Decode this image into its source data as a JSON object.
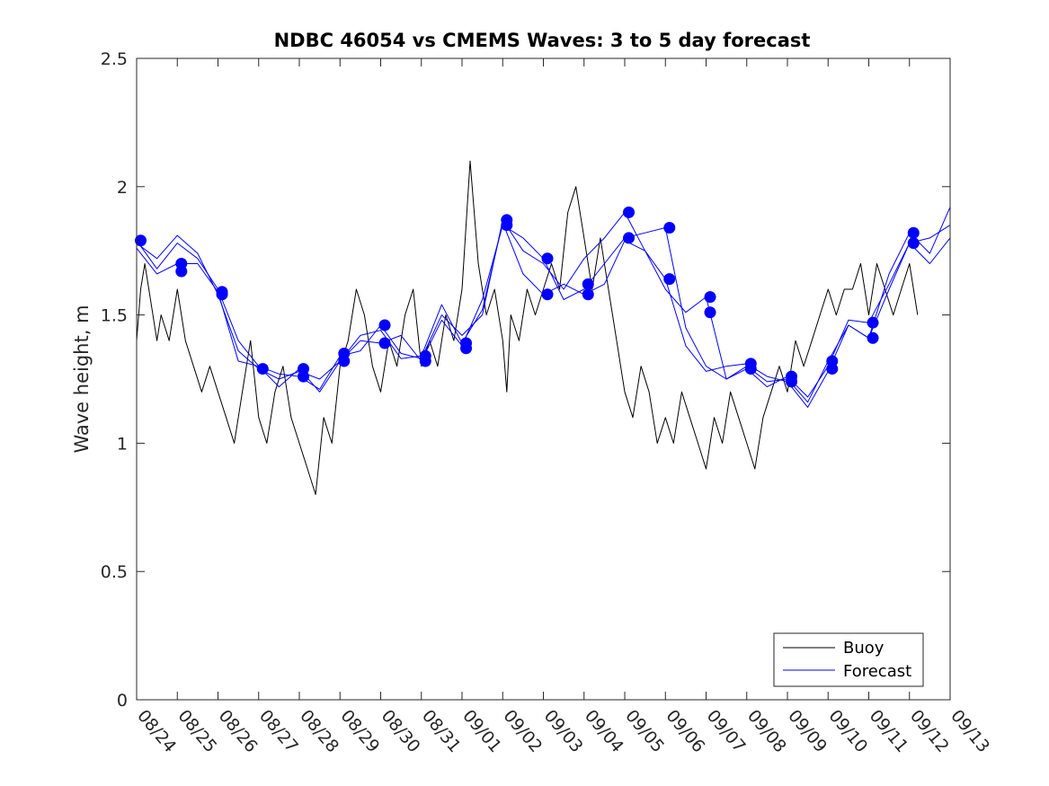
{
  "chart_data": {
    "type": "line",
    "title": "NDBC 46054 vs CMEMS Waves: 3 to 5 day forecast",
    "xlabel": "",
    "ylabel": "Wave height, m",
    "xlim": [
      0,
      20
    ],
    "ylim": [
      0,
      2.5
    ],
    "yticks": [
      0,
      0.5,
      1,
      1.5,
      2,
      2.5
    ],
    "ytick_labels": [
      "0",
      "0.5",
      "1",
      "1.5",
      "2",
      "2.5"
    ],
    "xtick_labels": [
      "08/24",
      "08/25",
      "08/26",
      "08/27",
      "08/28",
      "08/29",
      "08/30",
      "08/31",
      "09/01",
      "09/02",
      "09/03",
      "09/04",
      "09/05",
      "09/06",
      "09/07",
      "09/08",
      "09/09",
      "09/10",
      "09/11",
      "09/12",
      "09/13"
    ],
    "legend": {
      "location": "bottom-right",
      "entries": [
        "Buoy",
        "Forecast"
      ]
    },
    "colors": {
      "buoy": "#000000",
      "forecast": "#0000ff",
      "axis": "#262626"
    },
    "series": [
      {
        "name": "Buoy",
        "x": [
          0,
          0.1,
          0.2,
          0.3,
          0.4,
          0.5,
          0.6,
          0.8,
          1.0,
          1.2,
          1.4,
          1.6,
          1.8,
          2.0,
          2.2,
          2.4,
          2.6,
          2.8,
          3.0,
          3.2,
          3.4,
          3.6,
          3.8,
          4.0,
          4.2,
          4.4,
          4.6,
          4.8,
          5.0,
          5.2,
          5.4,
          5.6,
          5.8,
          6.0,
          6.2,
          6.4,
          6.6,
          6.8,
          7.0,
          7.2,
          7.4,
          7.6,
          7.8,
          8.0,
          8.2,
          8.4,
          8.6,
          8.8,
          9.0,
          9.1,
          9.2,
          9.4,
          9.6,
          9.8,
          10.0,
          10.2,
          10.4,
          10.6,
          10.8,
          11.0,
          11.2,
          11.4,
          11.6,
          11.8,
          12.0,
          12.2,
          12.4,
          12.6,
          12.8,
          13.0,
          13.2,
          13.4,
          13.6,
          13.8,
          14.0,
          14.2,
          14.4,
          14.6,
          14.8,
          15.0,
          15.2,
          15.4,
          15.6,
          15.8,
          16.0,
          16.2,
          16.4,
          16.6,
          16.8,
          17.0,
          17.2,
          17.4,
          17.6,
          17.8,
          18.0,
          18.2,
          18.4,
          18.6,
          18.8,
          19.0,
          19.2
        ],
        "y": [
          1.4,
          1.6,
          1.7,
          1.6,
          1.5,
          1.4,
          1.5,
          1.4,
          1.6,
          1.4,
          1.3,
          1.2,
          1.3,
          1.2,
          1.1,
          1.0,
          1.2,
          1.4,
          1.1,
          1.0,
          1.2,
          1.3,
          1.1,
          1.0,
          0.9,
          0.8,
          1.1,
          1.0,
          1.3,
          1.4,
          1.6,
          1.5,
          1.3,
          1.2,
          1.4,
          1.3,
          1.5,
          1.6,
          1.3,
          1.4,
          1.3,
          1.5,
          1.4,
          1.6,
          2.1,
          1.7,
          1.5,
          1.6,
          1.4,
          1.2,
          1.5,
          1.4,
          1.6,
          1.5,
          1.6,
          1.7,
          1.6,
          1.9,
          2.0,
          1.8,
          1.6,
          1.8,
          1.6,
          1.4,
          1.2,
          1.1,
          1.3,
          1.2,
          1.0,
          1.1,
          1.0,
          1.2,
          1.1,
          1.0,
          0.9,
          1.1,
          1.0,
          1.2,
          1.1,
          1.0,
          0.9,
          1.1,
          1.2,
          1.3,
          1.2,
          1.4,
          1.3,
          1.4,
          1.5,
          1.6,
          1.5,
          1.6,
          1.6,
          1.7,
          1.5,
          1.7,
          1.6,
          1.5,
          1.6,
          1.7,
          1.5
        ]
      },
      {
        "name": "Forecast 1",
        "x": [
          0,
          0.5,
          1.0,
          1.5,
          2.0,
          2.5,
          3.0,
          3.5,
          4.0,
          4.5,
          5.0,
          5.5,
          6.0,
          6.5,
          7.0,
          7.5,
          8.0,
          8.5,
          9.0,
          9.5,
          10.0,
          10.5,
          11.0,
          11.5,
          12.0,
          12.5,
          13.0,
          13.5,
          14.0,
          14.5,
          15.0,
          15.5,
          16.0,
          16.5,
          17.0,
          17.5,
          18.0,
          18.5,
          19.0,
          19.5,
          20.0
        ],
        "y": [
          1.79,
          1.68,
          1.78,
          1.72,
          1.6,
          1.4,
          1.3,
          1.27,
          1.26,
          1.21,
          1.34,
          1.36,
          1.46,
          1.35,
          1.33,
          1.5,
          1.42,
          1.5,
          1.87,
          1.75,
          1.7,
          1.6,
          1.72,
          1.8,
          1.9,
          1.75,
          1.64,
          1.38,
          1.28,
          1.3,
          1.31,
          1.26,
          1.24,
          1.14,
          1.28,
          1.46,
          1.41,
          1.66,
          1.82,
          1.74,
          1.92
        ]
      },
      {
        "name": "Forecast 2",
        "x": [
          0,
          0.5,
          1.0,
          1.5,
          2.0,
          2.5,
          3.0,
          3.5,
          4.0,
          4.5,
          5.0,
          5.5,
          6.0,
          6.5,
          7.0,
          7.5,
          8.0,
          8.5,
          9.0,
          9.5,
          10.0,
          10.5,
          11.0,
          11.5,
          12.0,
          12.5,
          13.0,
          13.5,
          14.0,
          14.5,
          15.0,
          15.5,
          16.0,
          16.5,
          17.0,
          17.5,
          18.0,
          18.5,
          19.0,
          19.5,
          20.0
        ],
        "y": [
          1.78,
          1.72,
          1.81,
          1.74,
          1.58,
          1.36,
          1.29,
          1.25,
          1.28,
          1.25,
          1.32,
          1.4,
          1.39,
          1.42,
          1.32,
          1.48,
          1.38,
          1.56,
          1.85,
          1.8,
          1.72,
          1.56,
          1.6,
          1.7,
          1.8,
          1.82,
          1.84,
          1.45,
          1.3,
          1.25,
          1.29,
          1.22,
          1.26,
          1.18,
          1.3,
          1.48,
          1.47,
          1.62,
          1.78,
          1.8,
          1.85
        ]
      },
      {
        "name": "Forecast 3",
        "x": [
          0,
          0.5,
          1.0,
          1.5,
          2.0,
          2.5,
          3.0,
          3.5,
          4.0,
          4.5,
          5.0,
          5.5,
          6.0,
          6.5,
          7.0,
          7.5,
          8.0,
          8.5,
          9.0,
          9.5,
          10.0,
          10.5,
          11.0,
          11.5,
          12.0,
          12.5,
          13.0,
          13.5,
          14.0,
          14.5,
          15.0,
          15.5,
          16.0,
          16.5,
          17.0,
          17.5,
          18.0,
          18.5,
          19.0,
          19.5,
          20.0
        ],
        "y": [
          1.76,
          1.66,
          1.7,
          1.7,
          1.59,
          1.32,
          1.3,
          1.22,
          1.29,
          1.2,
          1.32,
          1.42,
          1.44,
          1.33,
          1.34,
          1.54,
          1.39,
          1.52,
          1.86,
          1.66,
          1.58,
          1.62,
          1.58,
          1.62,
          1.79,
          1.75,
          1.6,
          1.51,
          1.57,
          1.25,
          1.3,
          1.24,
          1.25,
          1.16,
          1.32,
          1.46,
          1.41,
          1.6,
          1.78,
          1.7,
          1.8
        ]
      }
    ],
    "markers": {
      "name": "Forecast start points",
      "x": [
        0.1,
        1.1,
        1.1,
        2.1,
        2.1,
        3.1,
        4.1,
        4.1,
        5.1,
        5.1,
        6.1,
        6.1,
        7.1,
        7.1,
        8.1,
        8.1,
        9.1,
        9.1,
        10.1,
        10.1,
        11.1,
        11.1,
        12.1,
        12.1,
        13.1,
        13.1,
        14.1,
        14.1,
        15.1,
        15.1,
        16.1,
        16.1,
        17.1,
        17.1,
        18.1,
        18.1,
        19.1,
        19.1
      ],
      "y": [
        1.79,
        1.7,
        1.67,
        1.59,
        1.58,
        1.29,
        1.29,
        1.26,
        1.35,
        1.32,
        1.46,
        1.39,
        1.34,
        1.32,
        1.39,
        1.37,
        1.87,
        1.85,
        1.72,
        1.58,
        1.62,
        1.58,
        1.9,
        1.8,
        1.84,
        1.64,
        1.57,
        1.51,
        1.31,
        1.29,
        1.26,
        1.24,
        1.32,
        1.29,
        1.47,
        1.41,
        1.82,
        1.78
      ]
    }
  }
}
